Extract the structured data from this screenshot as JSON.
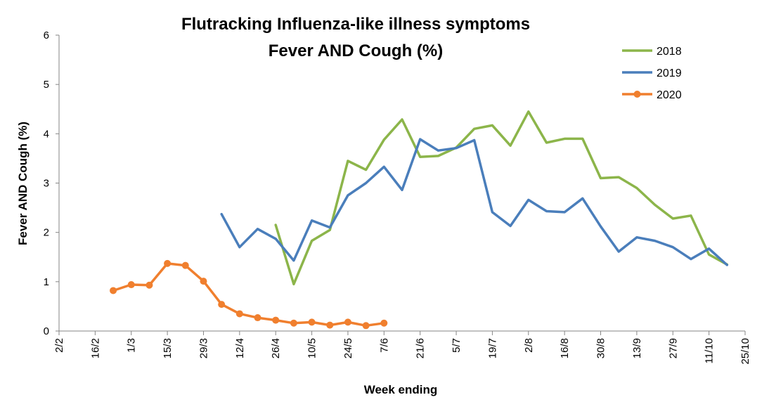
{
  "chart_data": {
    "type": "line",
    "title": "Flutracking Influenza-like illness symptoms",
    "subtitle": "Fever AND Cough (%)",
    "xlabel": "Week ending",
    "ylabel": "Fever AND Cough (%)",
    "ylim": [
      0,
      6
    ],
    "y_ticks": [
      "0",
      "1",
      "2",
      "3",
      "4",
      "5",
      "6"
    ],
    "x_ticks": [
      "2/2",
      "16/2",
      "1/3",
      "15/3",
      "29/3",
      "12/4",
      "26/4",
      "10/5",
      "24/5",
      "7/6",
      "21/6",
      "5/7",
      "19/7",
      "2/8",
      "16/8",
      "30/8",
      "13/9",
      "27/9",
      "11/10",
      "25/10"
    ],
    "grid": false,
    "legend_position": "top-right",
    "colors": {
      "2018": "#8CB54A",
      "2019": "#4A7EBB",
      "2020": "#F07F2E"
    },
    "series": [
      {
        "name": "2018",
        "start_week": 12,
        "values": [
          2.15,
          0.95,
          1.83,
          2.05,
          3.45,
          3.27,
          3.88,
          4.29,
          3.53,
          3.55,
          3.72,
          4.1,
          4.17,
          3.76,
          4.45,
          3.82,
          3.9,
          3.9,
          3.1,
          3.12,
          2.9,
          2.56,
          2.28,
          2.34,
          1.55,
          1.35
        ]
      },
      {
        "name": "2019",
        "start_week": 9,
        "values": [
          2.37,
          1.7,
          2.07,
          1.87,
          1.43,
          2.24,
          2.1,
          2.75,
          3.0,
          3.33,
          2.86,
          3.89,
          3.66,
          3.71,
          3.87,
          2.41,
          2.13,
          2.66,
          2.43,
          2.41,
          2.69,
          2.12,
          1.61,
          1.9,
          1.83,
          1.7,
          1.46,
          1.67,
          1.34
        ]
      },
      {
        "name": "2020",
        "start_week": 3,
        "values": [
          0.82,
          0.94,
          0.93,
          1.37,
          1.33,
          1.01,
          0.54,
          0.35,
          0.27,
          0.22,
          0.16,
          0.18,
          0.12,
          0.18,
          0.11,
          0.16
        ]
      }
    ]
  }
}
